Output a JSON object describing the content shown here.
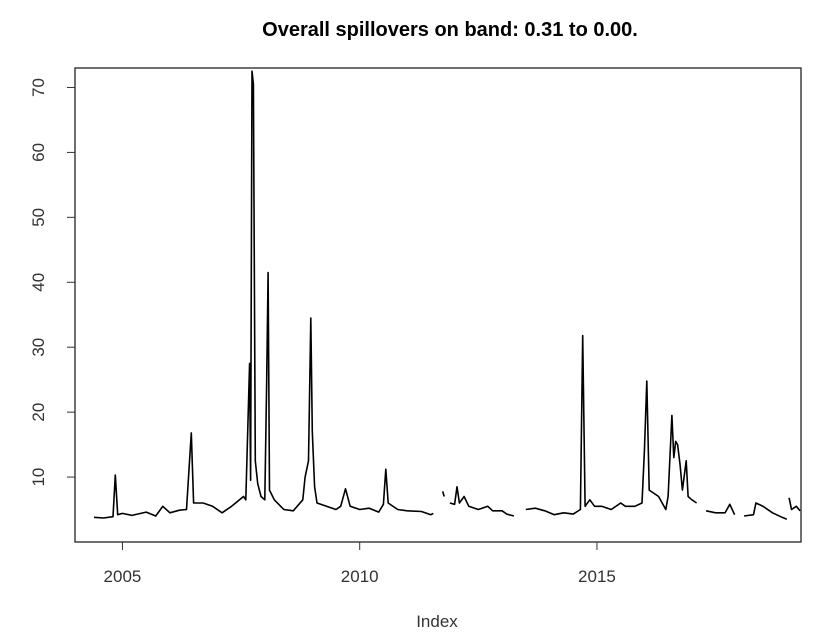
{
  "chart_data": {
    "type": "line",
    "title": "Overall spillovers on band: 0.31 to 0.00.",
    "xlabel": "Index",
    "ylabel": "",
    "xlim": [
      2004.0,
      2019.3
    ],
    "ylim": [
      0,
      73
    ],
    "x_ticks": [
      2005,
      2010,
      2015
    ],
    "x_tick_labels": [
      "2005",
      "2010",
      "2015"
    ],
    "y_ticks": [
      10,
      20,
      30,
      40,
      50,
      60,
      70
    ],
    "y_tick_labels": [
      "10",
      "20",
      "30",
      "40",
      "50",
      "60",
      "70"
    ],
    "grid": false,
    "series": [
      {
        "color": "#000000",
        "segments": [
          [
            [
              2004.4,
              3.8
            ],
            [
              2004.6,
              3.7
            ],
            [
              2004.8,
              3.9
            ],
            [
              2004.85,
              10.3
            ],
            [
              2004.9,
              4.2
            ],
            [
              2005.0,
              4.4
            ],
            [
              2005.2,
              4.1
            ],
            [
              2005.5,
              4.6
            ],
            [
              2005.7,
              4.0
            ],
            [
              2005.85,
              5.5
            ],
            [
              2006.0,
              4.5
            ],
            [
              2006.2,
              4.9
            ],
            [
              2006.35,
              5.0
            ],
            [
              2006.45,
              16.8
            ],
            [
              2006.5,
              6.0
            ],
            [
              2006.7,
              6.0
            ],
            [
              2006.9,
              5.5
            ],
            [
              2007.1,
              4.5
            ],
            [
              2007.3,
              5.5
            ],
            [
              2007.55,
              7.0
            ],
            [
              2007.6,
              6.5
            ],
            [
              2007.68,
              27.5
            ],
            [
              2007.7,
              9.5
            ],
            [
              2007.73,
              72.5
            ],
            [
              2007.76,
              70.5
            ],
            [
              2007.8,
              12.5
            ],
            [
              2007.85,
              9.0
            ],
            [
              2007.92,
              7.0
            ],
            [
              2008.0,
              6.5
            ],
            [
              2008.04,
              25.0
            ],
            [
              2008.07,
              41.5
            ],
            [
              2008.1,
              8.0
            ],
            [
              2008.2,
              6.5
            ],
            [
              2008.4,
              5.0
            ],
            [
              2008.6,
              4.8
            ],
            [
              2008.8,
              6.5
            ],
            [
              2008.85,
              10.0
            ],
            [
              2008.92,
              12.5
            ],
            [
              2008.97,
              34.5
            ],
            [
              2009.0,
              17.0
            ],
            [
              2009.05,
              8.5
            ],
            [
              2009.1,
              6.0
            ],
            [
              2009.3,
              5.5
            ],
            [
              2009.5,
              5.0
            ],
            [
              2009.6,
              5.5
            ],
            [
              2009.7,
              8.2
            ],
            [
              2009.8,
              5.5
            ],
            [
              2010.0,
              5.0
            ],
            [
              2010.2,
              5.2
            ],
            [
              2010.4,
              4.6
            ],
            [
              2010.5,
              5.8
            ],
            [
              2010.55,
              11.2
            ],
            [
              2010.6,
              6.0
            ],
            [
              2010.8,
              5.0
            ],
            [
              2011.0,
              4.8
            ],
            [
              2011.3,
              4.7
            ],
            [
              2011.5,
              4.2
            ],
            [
              2011.55,
              4.4
            ]
          ],
          [
            [
              2011.75,
              7.8
            ],
            [
              2011.78,
              7.0
            ]
          ],
          [
            [
              2011.9,
              6.0
            ],
            [
              2012.0,
              5.8
            ],
            [
              2012.05,
              8.5
            ],
            [
              2012.1,
              6.0
            ],
            [
              2012.2,
              7.0
            ],
            [
              2012.3,
              5.5
            ],
            [
              2012.5,
              5.0
            ],
            [
              2012.7,
              5.5
            ],
            [
              2012.8,
              4.8
            ],
            [
              2013.0,
              4.8
            ],
            [
              2013.1,
              4.3
            ],
            [
              2013.25,
              4.0
            ]
          ],
          [
            [
              2013.5,
              5.0
            ],
            [
              2013.7,
              5.2
            ],
            [
              2013.9,
              4.8
            ],
            [
              2014.1,
              4.2
            ],
            [
              2014.3,
              4.5
            ],
            [
              2014.5,
              4.3
            ],
            [
              2014.65,
              5.0
            ],
            [
              2014.7,
              31.8
            ],
            [
              2014.75,
              5.5
            ],
            [
              2014.85,
              6.5
            ],
            [
              2014.95,
              5.5
            ],
            [
              2015.1,
              5.5
            ],
            [
              2015.3,
              5.0
            ],
            [
              2015.5,
              6.0
            ],
            [
              2015.6,
              5.5
            ],
            [
              2015.8,
              5.5
            ],
            [
              2015.95,
              6.0
            ],
            [
              2016.0,
              14.0
            ],
            [
              2016.05,
              24.8
            ],
            [
              2016.1,
              8.0
            ],
            [
              2016.3,
              7.0
            ],
            [
              2016.45,
              5.0
            ],
            [
              2016.5,
              7.0
            ],
            [
              2016.58,
              19.5
            ],
            [
              2016.62,
              13.0
            ],
            [
              2016.66,
              15.5
            ],
            [
              2016.7,
              15.0
            ],
            [
              2016.75,
              12.0
            ],
            [
              2016.8,
              8.0
            ],
            [
              2016.88,
              12.5
            ],
            [
              2016.92,
              7.0
            ],
            [
              2017.0,
              6.5
            ],
            [
              2017.1,
              6.0
            ]
          ],
          [
            [
              2017.3,
              4.8
            ],
            [
              2017.5,
              4.5
            ],
            [
              2017.7,
              4.5
            ],
            [
              2017.8,
              5.8
            ],
            [
              2017.9,
              4.2
            ]
          ],
          [
            [
              2018.1,
              4.0
            ],
            [
              2018.3,
              4.2
            ],
            [
              2018.35,
              6.0
            ],
            [
              2018.5,
              5.5
            ],
            [
              2018.7,
              4.5
            ],
            [
              2018.9,
              3.8
            ],
            [
              2019.0,
              3.5
            ]
          ],
          [
            [
              2019.05,
              6.8
            ],
            [
              2019.1,
              5.0
            ],
            [
              2019.2,
              5.5
            ],
            [
              2019.28,
              4.8
            ]
          ]
        ]
      }
    ]
  }
}
